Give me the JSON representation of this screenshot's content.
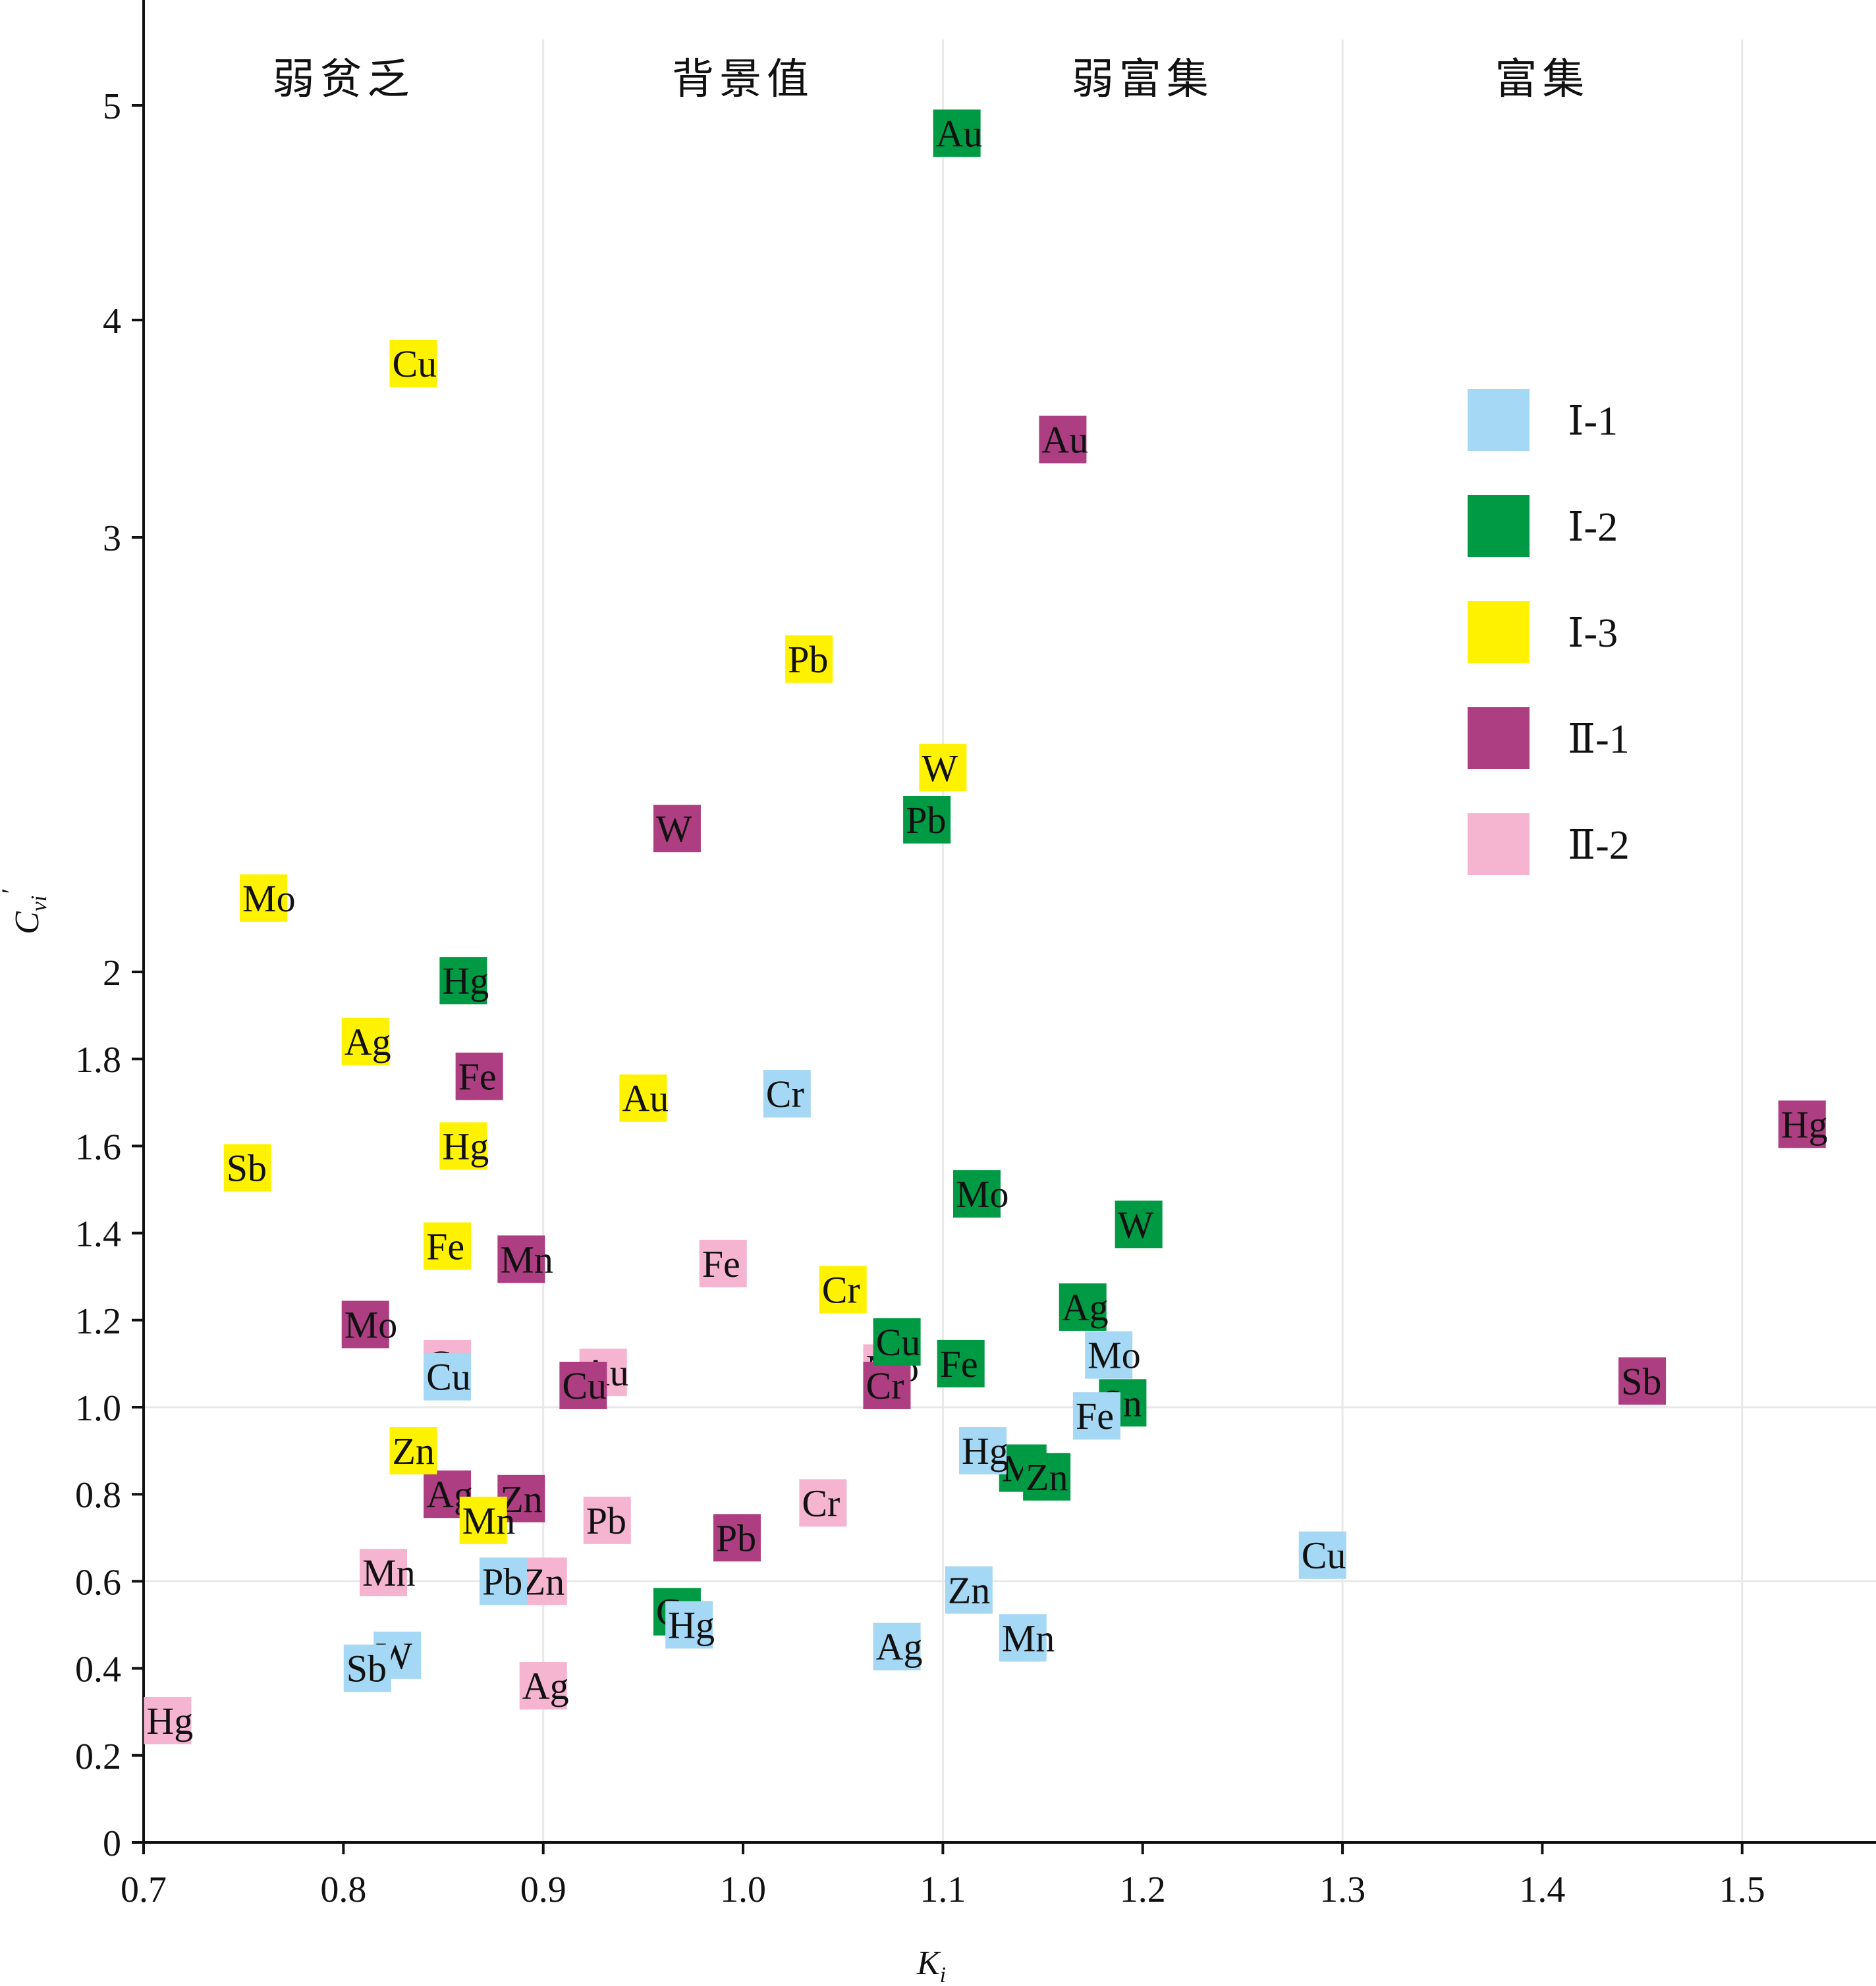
{
  "chart_data": {
    "type": "scatter",
    "xlabel": "K",
    "xlabel_sub": "i",
    "ylabel": "C",
    "ylabel_sub": "vi",
    "ylabel_sup": "′",
    "xlim": [
      0.7,
      1.567
    ],
    "x_ticks": [
      0.7,
      0.8,
      0.9,
      1.0,
      1.1,
      1.2,
      1.3,
      1.4,
      1.5
    ],
    "x_tick_labels": [
      "0.7",
      "0.8",
      "0.9",
      "1.0",
      "1.1",
      "1.2",
      "1.3",
      "1.4",
      "1.5"
    ],
    "y_scale": "piecewise-linear",
    "y_breaks": [
      [
        0,
        0
      ],
      [
        2,
        2
      ],
      [
        3,
        3
      ],
      [
        4,
        4
      ],
      [
        5,
        5
      ],
      [
        5.5,
        5.5
      ]
    ],
    "y_ticks": [
      0,
      0.2,
      0.4,
      0.6,
      0.8,
      1.0,
      1.2,
      1.4,
      1.6,
      1.8,
      2,
      3,
      4,
      5
    ],
    "y_tick_labels": [
      "0",
      "0.2",
      "0.4",
      "0.6",
      "0.8",
      "1.0",
      "1.2",
      "1.4",
      "1.6",
      "1.8",
      "2",
      "3",
      "4",
      "5"
    ],
    "vertical_grid": [
      0.9,
      1.1,
      1.3,
      1.5
    ],
    "horizontal_grid": [
      0.6,
      1.0
    ],
    "regions": [
      {
        "label": "弱贫乏",
        "x_center": 0.8
      },
      {
        "label": "背景值",
        "x_center": 1.0
      },
      {
        "label": "弱富集",
        "x_center": 1.2
      },
      {
        "label": "富集",
        "x_center": 1.4
      }
    ],
    "legend_position": "right",
    "series": [
      {
        "name": "Ⅱ-2",
        "color": "#f5b4cf",
        "points": [
          {
            "el": "Hg",
            "x": 0.712,
            "y": 0.28
          },
          {
            "el": "Ag",
            "x": 0.9,
            "y": 0.36
          },
          {
            "el": "Mn",
            "x": 0.82,
            "y": 0.62
          },
          {
            "el": "Zn",
            "x": 0.9,
            "y": 0.6
          },
          {
            "el": "Pb",
            "x": 0.932,
            "y": 0.74
          },
          {
            "el": "Cr",
            "x": 1.04,
            "y": 0.78
          },
          {
            "el": "Cu",
            "x": 0.852,
            "y": 1.1
          },
          {
            "el": "Au",
            "x": 0.93,
            "y": 1.08
          },
          {
            "el": "Fe",
            "x": 0.99,
            "y": 1.33
          },
          {
            "el": "Mo",
            "x": 1.072,
            "y": 1.09
          }
        ]
      },
      {
        "name": "Ⅱ-1",
        "color": "#ad3e81",
        "points": [
          {
            "el": "Sb",
            "x": 1.45,
            "y": 1.06
          },
          {
            "el": "Hg",
            "x": 1.53,
            "y": 1.65
          },
          {
            "el": "Mo",
            "x": 0.811,
            "y": 1.19
          },
          {
            "el": "Mn",
            "x": 0.889,
            "y": 1.34
          },
          {
            "el": "Fe",
            "x": 0.868,
            "y": 1.76
          },
          {
            "el": "W",
            "x": 0.967,
            "y": 2.33
          },
          {
            "el": "Au",
            "x": 1.16,
            "y": 3.45
          },
          {
            "el": "Cu",
            "x": 0.92,
            "y": 1.05
          },
          {
            "el": "Cr",
            "x": 1.072,
            "y": 1.05
          },
          {
            "el": "Ag",
            "x": 0.852,
            "y": 0.8
          },
          {
            "el": "Zn",
            "x": 0.889,
            "y": 0.79
          },
          {
            "el": "Pb",
            "x": 0.997,
            "y": 0.7
          }
        ]
      },
      {
        "name": "Ⅰ-3",
        "color": "#fff200",
        "points": [
          {
            "el": "Cu",
            "x": 0.835,
            "y": 3.8
          },
          {
            "el": "Pb",
            "x": 1.033,
            "y": 2.72
          },
          {
            "el": "W",
            "x": 1.1,
            "y": 2.47
          },
          {
            "el": "Mo",
            "x": 0.76,
            "y": 2.17
          },
          {
            "el": "Ag",
            "x": 0.811,
            "y": 1.84
          },
          {
            "el": "Au",
            "x": 0.95,
            "y": 1.71
          },
          {
            "el": "Hg",
            "x": 0.86,
            "y": 1.6
          },
          {
            "el": "Sb",
            "x": 0.752,
            "y": 1.55
          },
          {
            "el": "Fe",
            "x": 0.852,
            "y": 1.37
          },
          {
            "el": "Cr",
            "x": 1.05,
            "y": 1.27
          },
          {
            "el": "Zn",
            "x": 0.835,
            "y": 0.9
          },
          {
            "el": "Mn",
            "x": 0.87,
            "y": 0.74
          }
        ]
      },
      {
        "name": "Ⅰ-2",
        "color": "#009a44",
        "points": [
          {
            "el": "Au",
            "x": 1.107,
            "y": 4.87
          },
          {
            "el": "Pb",
            "x": 1.092,
            "y": 2.35
          },
          {
            "el": "Hg",
            "x": 0.86,
            "y": 1.98
          },
          {
            "el": "Mo",
            "x": 1.117,
            "y": 1.49
          },
          {
            "el": "W",
            "x": 1.198,
            "y": 1.42
          },
          {
            "el": "Ag",
            "x": 1.17,
            "y": 1.23
          },
          {
            "el": "Cu",
            "x": 1.077,
            "y": 1.15
          },
          {
            "el": "Fe",
            "x": 1.109,
            "y": 1.1
          },
          {
            "el": "Sn",
            "x": 1.19,
            "y": 1.01
          },
          {
            "el": "Mn",
            "x": 1.14,
            "y": 0.86
          },
          {
            "el": "Zn",
            "x": 1.152,
            "y": 0.84
          },
          {
            "el": "Cr",
            "x": 0.967,
            "y": 0.53
          }
        ]
      },
      {
        "name": "Ⅰ-1",
        "color": "#a4d8f4",
        "points": [
          {
            "el": "Cr",
            "x": 1.022,
            "y": 1.72
          },
          {
            "el": "Mo",
            "x": 1.183,
            "y": 1.12
          },
          {
            "el": "Fe",
            "x": 1.177,
            "y": 0.98
          },
          {
            "el": "Hg",
            "x": 1.12,
            "y": 0.9
          },
          {
            "el": "Cu",
            "x": 1.29,
            "y": 0.66
          },
          {
            "el": "Zn",
            "x": 1.113,
            "y": 0.58
          },
          {
            "el": "Mn",
            "x": 1.14,
            "y": 0.47
          },
          {
            "el": "Ag",
            "x": 1.077,
            "y": 0.45
          },
          {
            "el": "Hg",
            "x": 0.973,
            "y": 0.5
          },
          {
            "el": "Pb",
            "x": 0.88,
            "y": 0.6
          },
          {
            "el": "W",
            "x": 0.827,
            "y": 0.43
          },
          {
            "el": "Sb",
            "x": 0.812,
            "y": 0.4
          },
          {
            "el": "Cu",
            "x": 0.852,
            "y": 1.07
          }
        ]
      }
    ]
  }
}
